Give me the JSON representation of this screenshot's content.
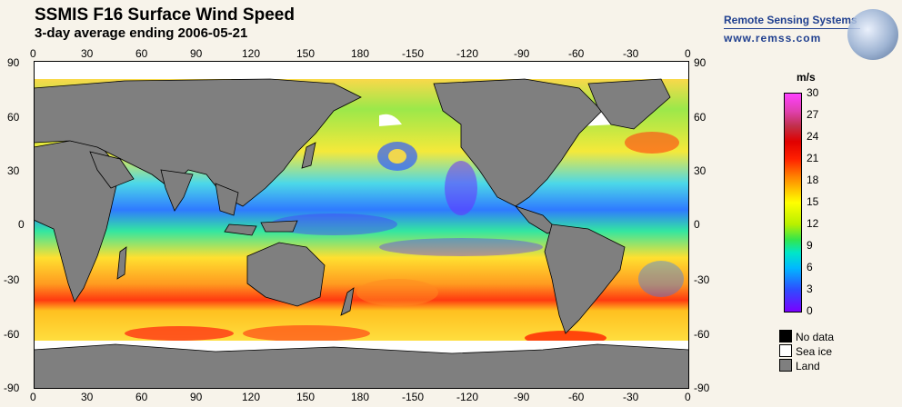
{
  "header": {
    "title": "SSMIS F16 Surface Wind Speed",
    "subtitle": "3-day average ending 2006-05-21"
  },
  "logo": {
    "name": "Remote Sensing Systems",
    "url": "www.remss.com"
  },
  "axes": {
    "lon_labels": [
      "0",
      "30",
      "60",
      "90",
      "120",
      "150",
      "180",
      "-150",
      "-120",
      "-90",
      "-60",
      "-30",
      "0"
    ],
    "lat_labels": [
      "90",
      "60",
      "30",
      "0",
      "-30",
      "-60",
      "-90"
    ]
  },
  "colorbar": {
    "unit": "m/s",
    "ticks": [
      "30",
      "27",
      "24",
      "21",
      "18",
      "15",
      "12",
      "9",
      "6",
      "3",
      "0"
    ]
  },
  "legend": {
    "no_data": "No data",
    "sea_ice": "Sea ice",
    "land": "Land"
  },
  "colors": {
    "land": "#7f7f7f",
    "sea_ice": "#ffffff",
    "no_data": "#000000"
  }
}
